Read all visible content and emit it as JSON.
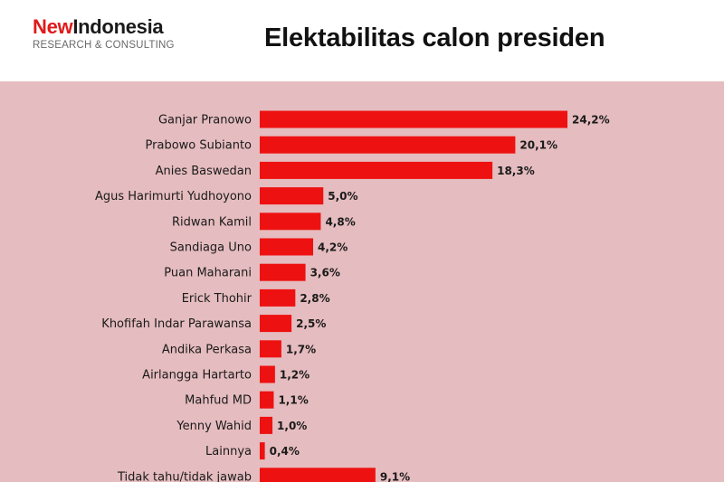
{
  "header": {
    "logo_brand_part1": "New",
    "logo_brand_part2": "Indonesia",
    "logo_subtitle": "RESEARCH & CONSULTING",
    "title": "Elektabilitas calon presiden"
  },
  "colors": {
    "bar": "#ee1111",
    "chart_background": "#e5bcbf",
    "logo_accent": "#e01a1a"
  },
  "chart_data": {
    "type": "bar",
    "orientation": "horizontal",
    "title": "Elektabilitas calon presiden",
    "categories": [
      "Ganjar Pranowo",
      "Prabowo Subianto",
      "Anies Baswedan",
      "Agus Harimurti Yudhoyono",
      "Ridwan Kamil",
      "Sandiaga Uno",
      "Puan Maharani",
      "Erick Thohir",
      "Khofifah Indar Parawansa",
      "Andika Perkasa",
      "Airlangga Hartarto",
      "Mahfud MD",
      "Yenny Wahid",
      "Lainnya",
      "Tidak tahu/tidak jawab"
    ],
    "values": [
      24.2,
      20.1,
      18.3,
      5.0,
      4.8,
      4.2,
      3.6,
      2.8,
      2.5,
      1.7,
      1.2,
      1.1,
      1.0,
      0.4,
      9.1
    ],
    "value_labels": [
      "24,2%",
      "20,1%",
      "18,3%",
      "5,0%",
      "4,8%",
      "4,2%",
      "3,6%",
      "2,8%",
      "2,5%",
      "1,7%",
      "1,2%",
      "1,1%",
      "1,0%",
      "0,4%",
      "9,1%"
    ],
    "xlabel": "",
    "ylabel": "",
    "grid": false,
    "legend": "none"
  }
}
